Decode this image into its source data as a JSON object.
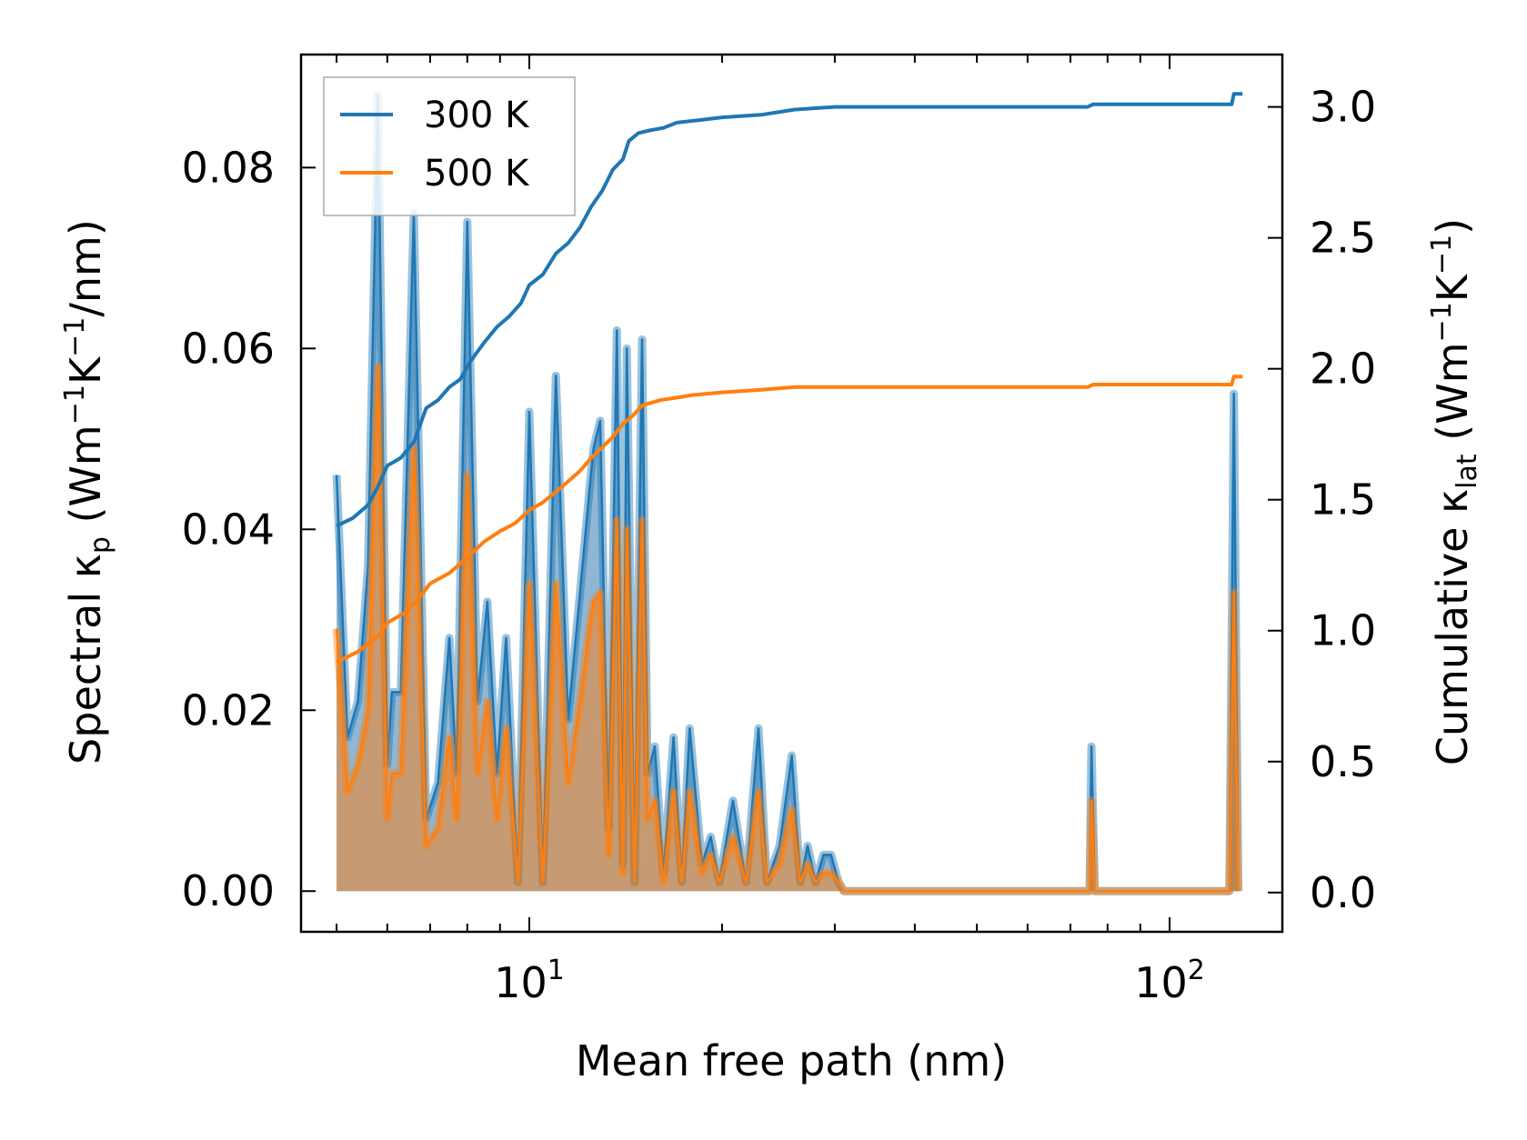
{
  "chart_data": {
    "type": "line",
    "x_scale": "log",
    "xlabel": "Mean free path (nm)",
    "ylabel_left": {
      "prefix": "Spectral κ",
      "sub": "p",
      "middle": " (Wm",
      "sup1": "−1",
      "k": "K",
      "sup2": "−1",
      "suffix": "/nm)"
    },
    "ylabel_right": {
      "prefix": "Cumulative κ",
      "sub": "lat",
      "middle": " (Wm",
      "sup1": "−1",
      "k": "K",
      "sup2": "−1",
      "suffix": ")"
    },
    "xlim": [
      4.4,
      150
    ],
    "ylim_left": [
      -0.0045,
      0.0925
    ],
    "ylim_right": [
      -0.15,
      3.2
    ],
    "x_ticks": [
      {
        "base": "10",
        "exp": "1",
        "value": 10
      },
      {
        "base": "10",
        "exp": "2",
        "value": 100
      }
    ],
    "y_ticks_left": [
      "0.00",
      "0.02",
      "0.04",
      "0.06",
      "0.08"
    ],
    "y_ticks_right": [
      "0.0",
      "0.5",
      "1.0",
      "1.5",
      "2.0",
      "2.5",
      "3.0"
    ],
    "legend": {
      "position": "top-left",
      "entries": [
        "300 K",
        "500 K"
      ]
    },
    "series": [
      {
        "name": "300 K",
        "color": "#1f77b4",
        "spectral": [
          [
            5.0,
            0.046
          ],
          [
            5.2,
            0.017
          ],
          [
            5.4,
            0.021
          ],
          [
            5.6,
            0.036
          ],
          [
            5.8,
            0.088
          ],
          [
            6.0,
            0.014
          ],
          [
            6.1,
            0.022
          ],
          [
            6.3,
            0.022
          ],
          [
            6.6,
            0.075
          ],
          [
            6.9,
            0.008
          ],
          [
            7.2,
            0.012
          ],
          [
            7.5,
            0.028
          ],
          [
            7.7,
            0.013
          ],
          [
            8.0,
            0.074
          ],
          [
            8.3,
            0.021
          ],
          [
            8.6,
            0.032
          ],
          [
            8.9,
            0.013
          ],
          [
            9.2,
            0.028
          ],
          [
            9.6,
            0.001
          ],
          [
            10.0,
            0.053
          ],
          [
            10.5,
            0.001
          ],
          [
            11.0,
            0.057
          ],
          [
            11.5,
            0.019
          ],
          [
            12.0,
            0.033
          ],
          [
            12.4,
            0.044
          ],
          [
            12.6,
            0.049
          ],
          [
            12.9,
            0.052
          ],
          [
            13.3,
            0.007
          ],
          [
            13.7,
            0.062
          ],
          [
            14.0,
            0.003
          ],
          [
            14.2,
            0.06
          ],
          [
            14.6,
            0.001
          ],
          [
            15.0,
            0.061
          ],
          [
            15.3,
            0.013
          ],
          [
            15.7,
            0.016
          ],
          [
            16.2,
            0.002
          ],
          [
            16.8,
            0.017
          ],
          [
            17.3,
            0.001
          ],
          [
            17.8,
            0.018
          ],
          [
            18.6,
            0.003
          ],
          [
            19.2,
            0.006
          ],
          [
            19.8,
            0.001
          ],
          [
            20.8,
            0.01
          ],
          [
            21.8,
            0.001
          ],
          [
            22.8,
            0.018
          ],
          [
            23.5,
            0.001
          ],
          [
            24.6,
            0.005
          ],
          [
            25.7,
            0.015
          ],
          [
            26.5,
            0.001
          ],
          [
            27.2,
            0.005
          ],
          [
            28.0,
            0.001
          ],
          [
            28.8,
            0.004
          ],
          [
            29.6,
            0.004
          ],
          [
            30.4,
            0.001
          ],
          [
            31.0,
            0.0
          ],
          [
            75.0,
            0.0
          ],
          [
            75.5,
            0.016
          ],
          [
            76.4,
            0.0
          ],
          [
            124.0,
            0.0
          ],
          [
            126.0,
            0.055
          ],
          [
            128.0,
            0.0
          ]
        ],
        "cumulative": [
          [
            5.0,
            1.4
          ],
          [
            5.3,
            1.43
          ],
          [
            5.6,
            1.48
          ],
          [
            5.8,
            1.55
          ],
          [
            6.0,
            1.63
          ],
          [
            6.3,
            1.66
          ],
          [
            6.6,
            1.72
          ],
          [
            6.9,
            1.85
          ],
          [
            7.2,
            1.88
          ],
          [
            7.5,
            1.93
          ],
          [
            7.8,
            1.96
          ],
          [
            8.1,
            2.03
          ],
          [
            8.5,
            2.1
          ],
          [
            8.9,
            2.16
          ],
          [
            9.3,
            2.2
          ],
          [
            9.7,
            2.25
          ],
          [
            10.0,
            2.32
          ],
          [
            10.5,
            2.36
          ],
          [
            11.0,
            2.44
          ],
          [
            11.5,
            2.48
          ],
          [
            12.0,
            2.54
          ],
          [
            12.5,
            2.62
          ],
          [
            13.0,
            2.68
          ],
          [
            13.5,
            2.76
          ],
          [
            14.0,
            2.8
          ],
          [
            14.3,
            2.87
          ],
          [
            14.8,
            2.9
          ],
          [
            15.4,
            2.91
          ],
          [
            16.2,
            2.92
          ],
          [
            17.0,
            2.94
          ],
          [
            18.5,
            2.95
          ],
          [
            20.0,
            2.96
          ],
          [
            23.0,
            2.97
          ],
          [
            26.0,
            2.99
          ],
          [
            30.0,
            3.0
          ],
          [
            74.5,
            3.0
          ],
          [
            76.0,
            3.01
          ],
          [
            125.0,
            3.01
          ],
          [
            126.0,
            3.05
          ],
          [
            130.0,
            3.05
          ]
        ]
      },
      {
        "name": "500 K",
        "color": "#ff7f0e",
        "spectral": [
          [
            5.0,
            0.029
          ],
          [
            5.2,
            0.011
          ],
          [
            5.4,
            0.014
          ],
          [
            5.6,
            0.02
          ],
          [
            5.8,
            0.058
          ],
          [
            6.0,
            0.008
          ],
          [
            6.1,
            0.013
          ],
          [
            6.3,
            0.013
          ],
          [
            6.6,
            0.049
          ],
          [
            6.9,
            0.005
          ],
          [
            7.2,
            0.007
          ],
          [
            7.5,
            0.017
          ],
          [
            7.7,
            0.008
          ],
          [
            8.0,
            0.046
          ],
          [
            8.3,
            0.013
          ],
          [
            8.6,
            0.021
          ],
          [
            8.9,
            0.008
          ],
          [
            9.2,
            0.018
          ],
          [
            9.6,
            0.001
          ],
          [
            10.0,
            0.034
          ],
          [
            10.5,
            0.001
          ],
          [
            11.0,
            0.034
          ],
          [
            11.5,
            0.012
          ],
          [
            12.0,
            0.021
          ],
          [
            12.4,
            0.029
          ],
          [
            12.6,
            0.032
          ],
          [
            12.9,
            0.033
          ],
          [
            13.3,
            0.004
          ],
          [
            13.7,
            0.041
          ],
          [
            14.0,
            0.002
          ],
          [
            14.2,
            0.04
          ],
          [
            14.6,
            0.001
          ],
          [
            15.0,
            0.041
          ],
          [
            15.3,
            0.008
          ],
          [
            15.7,
            0.01
          ],
          [
            16.2,
            0.001
          ],
          [
            16.8,
            0.011
          ],
          [
            17.3,
            0.001
          ],
          [
            17.8,
            0.011
          ],
          [
            18.6,
            0.002
          ],
          [
            19.2,
            0.004
          ],
          [
            19.8,
            0.001
          ],
          [
            20.8,
            0.006
          ],
          [
            21.8,
            0.001
          ],
          [
            22.8,
            0.011
          ],
          [
            23.5,
            0.001
          ],
          [
            24.6,
            0.003
          ],
          [
            25.7,
            0.009
          ],
          [
            26.5,
            0.001
          ],
          [
            27.2,
            0.003
          ],
          [
            28.0,
            0.001
          ],
          [
            28.8,
            0.002
          ],
          [
            29.6,
            0.002
          ],
          [
            30.4,
            0.001
          ],
          [
            31.0,
            0.0
          ],
          [
            75.0,
            0.0
          ],
          [
            75.5,
            0.01
          ],
          [
            76.4,
            0.0
          ],
          [
            124.0,
            0.0
          ],
          [
            126.0,
            0.033
          ],
          [
            128.0,
            0.0
          ]
        ],
        "cumulative": [
          [
            5.0,
            0.88
          ],
          [
            5.4,
            0.92
          ],
          [
            5.8,
            0.98
          ],
          [
            6.0,
            1.03
          ],
          [
            6.4,
            1.07
          ],
          [
            6.7,
            1.12
          ],
          [
            7.0,
            1.18
          ],
          [
            7.5,
            1.22
          ],
          [
            8.0,
            1.28
          ],
          [
            8.5,
            1.34
          ],
          [
            9.0,
            1.38
          ],
          [
            9.5,
            1.41
          ],
          [
            10.0,
            1.46
          ],
          [
            10.5,
            1.49
          ],
          [
            11.0,
            1.53
          ],
          [
            11.5,
            1.57
          ],
          [
            12.0,
            1.61
          ],
          [
            12.5,
            1.66
          ],
          [
            13.0,
            1.7
          ],
          [
            13.5,
            1.74
          ],
          [
            14.0,
            1.79
          ],
          [
            14.5,
            1.82
          ],
          [
            15.0,
            1.86
          ],
          [
            16.0,
            1.88
          ],
          [
            17.0,
            1.89
          ],
          [
            18.0,
            1.9
          ],
          [
            20.0,
            1.91
          ],
          [
            23.0,
            1.92
          ],
          [
            26.0,
            1.93
          ],
          [
            30.0,
            1.93
          ],
          [
            74.5,
            1.93
          ],
          [
            76.0,
            1.94
          ],
          [
            125.0,
            1.94
          ],
          [
            126.0,
            1.97
          ],
          [
            130.0,
            1.97
          ]
        ]
      }
    ],
    "fill_overlap_color": "#c8996b"
  }
}
